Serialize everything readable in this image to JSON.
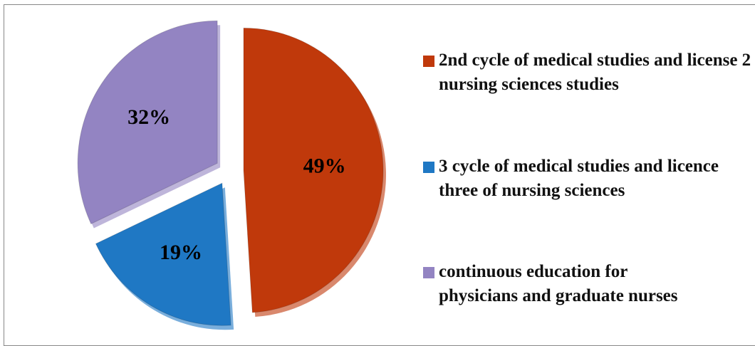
{
  "chart_data": {
    "type": "pie",
    "categories": [
      "2nd cycle of medical studies and license 2 nursing sciences studies",
      "3 cycle of medical studies and licence three of nursing sciences",
      "continuous education for physicians and graduate nurses"
    ],
    "values": [
      49,
      19,
      32
    ],
    "value_labels": [
      "49%",
      "19%",
      "32%"
    ],
    "colors": [
      "#c0390b",
      "#1f78c4",
      "#9384c2"
    ],
    "exploded": true,
    "legend": "right"
  }
}
